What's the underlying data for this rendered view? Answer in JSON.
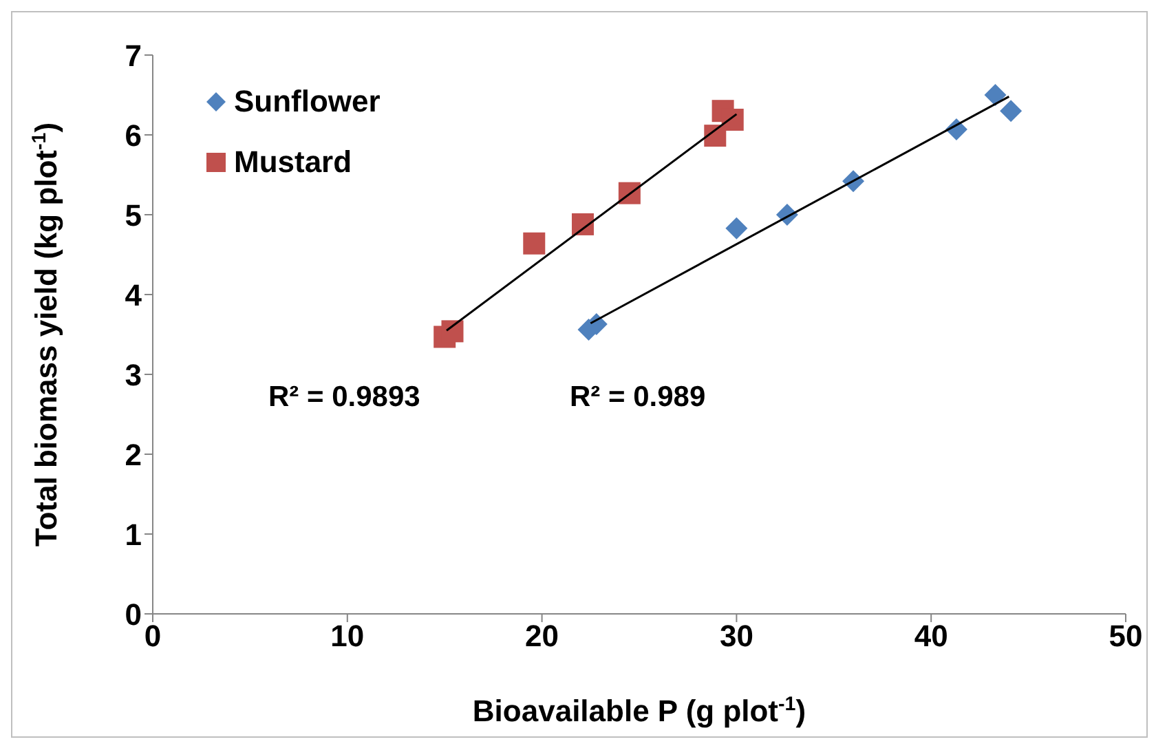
{
  "chart_data": {
    "type": "scatter",
    "xlabel": "Bioavailable P (g plot$^{-1}$)",
    "ylabel": "Total biomass yield (kg plot$^{-1}$)",
    "xlim": [
      0,
      50
    ],
    "xticks": [
      0,
      10,
      20,
      30,
      40,
      50
    ],
    "ylim": [
      0,
      7
    ],
    "yticks": [
      0,
      1,
      2,
      3,
      4,
      5,
      6,
      7
    ],
    "legend": "top left",
    "series": [
      {
        "name": "Sunflower",
        "color": "#4f81bd",
        "marker": "diamond",
        "x": [
          22.4,
          22.8,
          30.0,
          32.6,
          36.0,
          41.3,
          43.3,
          44.1
        ],
        "values": [
          3.56,
          3.63,
          4.83,
          5.0,
          5.42,
          6.07,
          6.5,
          6.3
        ]
      },
      {
        "name": "Mustard",
        "color": "#c0504d",
        "marker": "square",
        "x": [
          15.0,
          15.4,
          19.6,
          22.1,
          24.5,
          28.9,
          29.3,
          29.8
        ],
        "values": [
          3.47,
          3.54,
          4.64,
          4.88,
          5.27,
          5.99,
          6.3,
          6.19
        ]
      },
      {
        "type": "line",
        "color": "#000000",
        "marker": "none",
        "x": [
          22.5,
          44.0
        ],
        "values": [
          3.64,
          6.48
        ]
      },
      {
        "type": "line",
        "color": "#000000",
        "marker": "none",
        "x": [
          15.1,
          30.0
        ],
        "values": [
          3.55,
          6.26
        ]
      }
    ],
    "annotations": [
      "R² = 0.9893",
      "R² = 0.989"
    ]
  }
}
